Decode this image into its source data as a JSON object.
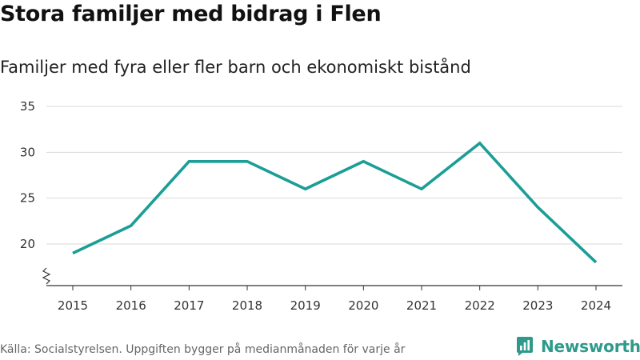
{
  "title": "Stora familjer med bidrag i Flen",
  "subtitle": "Familjer med fyra eller fler barn och ekonomiskt bistånd",
  "source": "Källa: Socialstyrelsen. Uppgiften bygger på medianmånaden för varje år",
  "brand": {
    "name": "Newsworthy",
    "icon": "newsworthy-logo-icon"
  },
  "colors": {
    "line": "#1a9e96",
    "grid": "#d9d9d9",
    "brand": "#2f9a8b"
  },
  "chart_data": {
    "type": "line",
    "title": "Stora familjer med bidrag i Flen",
    "subtitle": "Familjer med fyra eller fler barn och ekonomiskt bistånd",
    "xlabel": "",
    "ylabel": "",
    "x": [
      "2015",
      "2016",
      "2017",
      "2018",
      "2019",
      "2020",
      "2021",
      "2022",
      "2023",
      "2024"
    ],
    "series": [
      {
        "name": "Familjer",
        "values": [
          19,
          22,
          29,
          29,
          26,
          29,
          26,
          31,
          24,
          18
        ]
      }
    ],
    "yticks": [
      20,
      25,
      30,
      35
    ],
    "ylim": [
      15.5,
      35
    ],
    "grid": true,
    "axis_break": true
  }
}
